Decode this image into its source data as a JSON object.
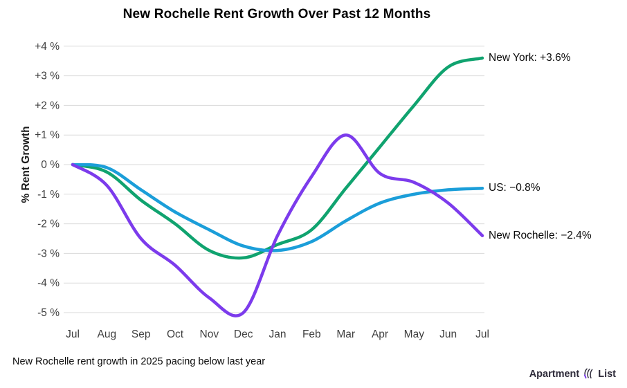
{
  "title": "New Rochelle Rent Growth Over Past 12 Months",
  "caption": "New Rochelle rent growth in 2025 pacing below last year",
  "branding": {
    "word_left": "Apartment",
    "word_right": "List",
    "mark": "apartment-list-logo-mark"
  },
  "colors": {
    "new_york": "#10a36f",
    "us": "#1b9ed9",
    "new_rochelle": "#7c3bec",
    "grid": "#d9d9d9",
    "axis_text": "#3f3f3f",
    "logo_text": "#2e2b3a",
    "logo_accent": "#7c3bec"
  },
  "chart_data": {
    "type": "line",
    "title": "New Rochelle Rent Growth Over Past 12 Months",
    "xlabel": "",
    "ylabel": "% Rent Growth",
    "categories": [
      "Jul",
      "Aug",
      "Sep",
      "Oct",
      "Nov",
      "Dec",
      "Jan",
      "Feb",
      "Mar",
      "Apr",
      "May",
      "Jun",
      "Jul"
    ],
    "y_tick_labels": [
      "+4 %",
      "+3 %",
      "+2 %",
      "+1 %",
      "0 %",
      "-1 %",
      "-2 %",
      "-3 %",
      "-4 %",
      "-5 %"
    ],
    "y_tick_values": [
      4,
      3,
      2,
      1,
      0,
      -1,
      -2,
      -3,
      -4,
      -5
    ],
    "ylim": [
      -5.4,
      4.4
    ],
    "grid": true,
    "legend_position": "end-of-line annotations, right side",
    "series": [
      {
        "name": "New York",
        "color": "#10a36f",
        "end_label": "New York: +3.6%",
        "end_value": 3.6,
        "values": [
          0,
          -0.25,
          -1.2,
          -2.0,
          -2.9,
          -3.15,
          -2.7,
          -2.2,
          -0.8,
          0.6,
          2.0,
          3.3,
          3.6
        ]
      },
      {
        "name": "US",
        "color": "#1b9ed9",
        "end_label": "US: −0.8%",
        "end_value": -0.8,
        "values": [
          0,
          -0.1,
          -0.85,
          -1.6,
          -2.2,
          -2.75,
          -2.9,
          -2.6,
          -1.9,
          -1.3,
          -1.0,
          -0.85,
          -0.8
        ]
      },
      {
        "name": "New Rochelle",
        "color": "#7c3bec",
        "end_label": "New Rochelle: −2.4%",
        "end_value": -2.4,
        "values": [
          0,
          -0.7,
          -2.5,
          -3.4,
          -4.5,
          -5.0,
          -2.4,
          -0.4,
          1.0,
          -0.3,
          -0.6,
          -1.3,
          -2.4
        ]
      }
    ]
  }
}
